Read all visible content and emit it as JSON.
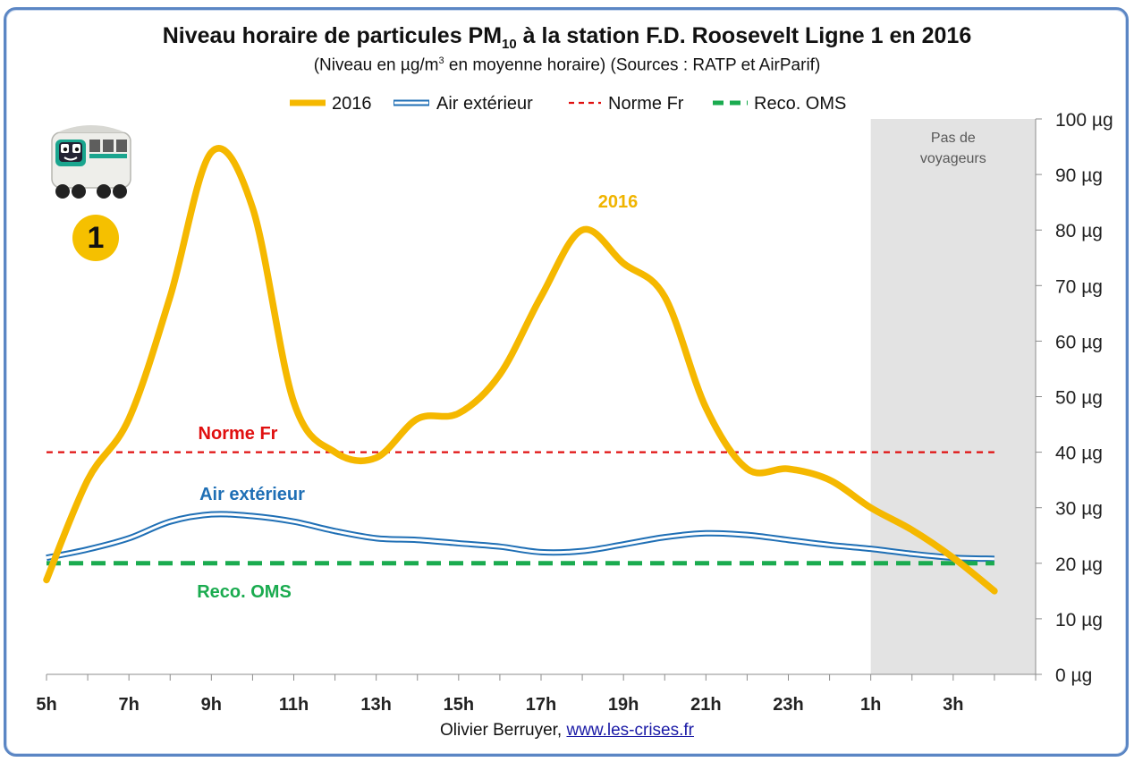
{
  "title": {
    "text_main": "Niveau horaire de particules PM",
    "text_sub": "10",
    "text_end": " à la station F.D. Roosevelt Ligne 1 en 2016"
  },
  "subtitle": {
    "text_main": "(Niveau en µg/m",
    "text_sup": "3",
    "text_end": "  en moyenne horaire) (Sources : RATP et AirParif)"
  },
  "legend": {
    "items": [
      {
        "label": "2016",
        "color": "#f5b800",
        "style": "solid-thick"
      },
      {
        "label": "Air extérieur",
        "color": "#1f6fb5",
        "style": "double"
      },
      {
        "label": "Norme Fr",
        "color": "#e01010",
        "style": "dashed"
      },
      {
        "label": "Reco. OMS",
        "color": "#1aab4f",
        "style": "dashed-thick"
      }
    ]
  },
  "annotations": {
    "shaded_label_line1": "Pas de",
    "shaded_label_line2": "voyageurs",
    "label_2016": "2016",
    "label_norme": "Norme Fr",
    "label_air": "Air extérieur",
    "label_oms": "Reco. OMS"
  },
  "credit": {
    "author": "Olivier Berruyer, ",
    "link": "www.les-crises.fr"
  },
  "badge": {
    "line_number": "1"
  },
  "colors": {
    "series_2016": "#f5b800",
    "air": "#1f6fb5",
    "norme": "#e01010",
    "oms": "#1aab4f",
    "shade": "#e3e3e3",
    "label_2016": "#f0b400"
  },
  "chart_data": {
    "type": "line",
    "x": [
      "5h",
      "6h",
      "7h",
      "8h",
      "9h",
      "10h",
      "11h",
      "12h",
      "13h",
      "14h",
      "15h",
      "16h",
      "17h",
      "18h",
      "19h",
      "20h",
      "21h",
      "22h",
      "23h",
      "0h",
      "1h",
      "2h",
      "3h",
      "4h"
    ],
    "x_tick_labels": [
      "5h",
      "7h",
      "9h",
      "11h",
      "13h",
      "15h",
      "17h",
      "19h",
      "21h",
      "23h",
      "1h",
      "3h"
    ],
    "y_tick_labels": [
      "0 µg",
      "10 µg",
      "20 µg",
      "30 µg",
      "40 µg",
      "50 µg",
      "60 µg",
      "70 µg",
      "80 µg",
      "90 µg",
      "100 µg"
    ],
    "ylim": [
      0,
      100
    ],
    "series": [
      {
        "name": "2016",
        "values": [
          17,
          35,
          46,
          68,
          94,
          84,
          49,
          40,
          39,
          46,
          47,
          54,
          68,
          80,
          74,
          68,
          48,
          37,
          37,
          35,
          30,
          26,
          21,
          15
        ]
      },
      {
        "name": "Air extérieur",
        "values": [
          21,
          22.5,
          24.5,
          27.5,
          28.8,
          28.5,
          27.5,
          25.8,
          24.5,
          24.2,
          23.6,
          23,
          22,
          22.2,
          23.4,
          24.7,
          25.4,
          25.1,
          24.2,
          23.3,
          22.6,
          21.7,
          21,
          20.8
        ]
      },
      {
        "name": "Norme Fr",
        "values": [
          40,
          40,
          40,
          40,
          40,
          40,
          40,
          40,
          40,
          40,
          40,
          40,
          40,
          40,
          40,
          40,
          40,
          40,
          40,
          40,
          40,
          40,
          40,
          40
        ]
      },
      {
        "name": "Reco. OMS",
        "values": [
          20,
          20,
          20,
          20,
          20,
          20,
          20,
          20,
          20,
          20,
          20,
          20,
          20,
          20,
          20,
          20,
          20,
          20,
          20,
          20,
          20,
          20,
          20,
          20
        ]
      }
    ],
    "shaded_range": [
      "1h",
      "4h"
    ],
    "grid": false,
    "y_axis_side": "right",
    "legend_position": "top"
  }
}
